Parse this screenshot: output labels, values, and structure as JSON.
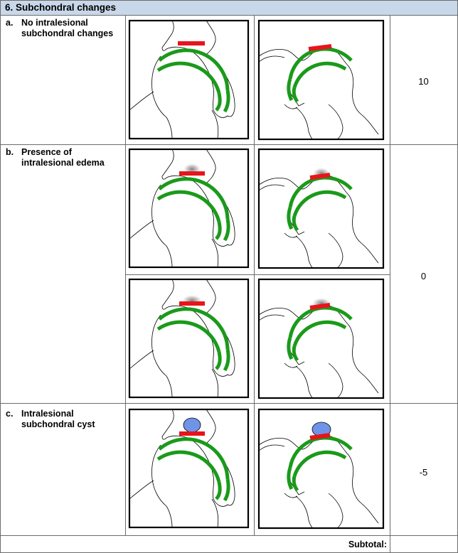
{
  "section": {
    "title": "6. Subchondral changes"
  },
  "rows": [
    {
      "letter": "a.",
      "label": "No intralesional subchondral changes",
      "score": "10"
    },
    {
      "letter": "b.",
      "label": "Presence of intralesional edema",
      "score": "0"
    },
    {
      "letter": "c.",
      "label": "Intralesional subchondral cyst",
      "score": "-5"
    }
  ],
  "footer": {
    "subtotal_label": "Subtotal:"
  },
  "colors": {
    "header_bg": "#c9d7ea",
    "cartilage": "#1a9a1a",
    "lesion": "#e8141b",
    "cyst": "#6f93e6",
    "edema": "#9a9a9a"
  }
}
